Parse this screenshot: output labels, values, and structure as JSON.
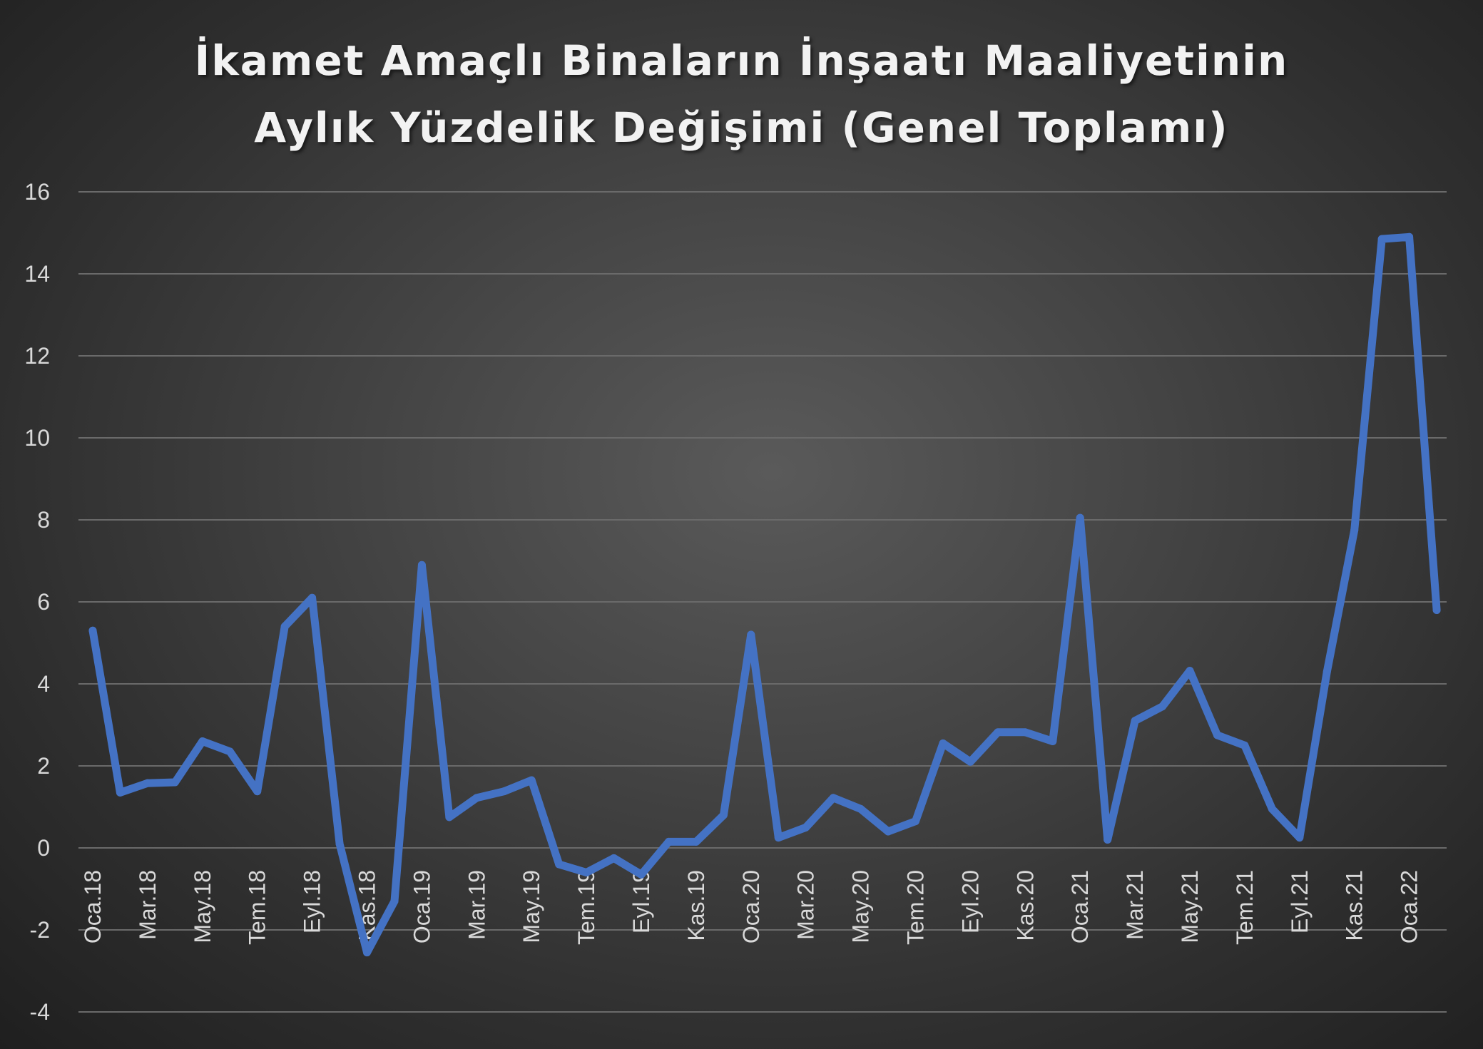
{
  "chart_data": {
    "type": "line",
    "title_lines": [
      "İkamet Amaçlı Binaların İnşaatı Maaliyetinin",
      "Aylık Yüzdelik Değişimi (Genel Toplamı)"
    ],
    "xlabel": "",
    "ylabel": "",
    "ylim": [
      -4,
      16
    ],
    "yticks": [
      16,
      14,
      12,
      10,
      8,
      6,
      4,
      2,
      0,
      -2,
      -4
    ],
    "grid": true,
    "x": [
      "Oca.18",
      "Şub.18",
      "Mar.18",
      "Nis.18",
      "May.18",
      "Haz.18",
      "Tem.18",
      "Ağu.18",
      "Eyl.18",
      "Eki.18",
      "Kas.18",
      "Ara.18",
      "Oca.19",
      "Şub.19",
      "Mar.19",
      "Nis.19",
      "May.19",
      "Haz.19",
      "Tem.19",
      "Ağu.19",
      "Eyl.19",
      "Eki.19",
      "Kas.19",
      "Ara.19",
      "Oca.20",
      "Şub.20",
      "Mar.20",
      "Nis.20",
      "May.20",
      "Haz.20",
      "Tem.20",
      "Ağu.20",
      "Eyl.20",
      "Eki.20",
      "Kas.20",
      "Ara.20",
      "Oca.21",
      "Şub.21",
      "Mar.21",
      "Nis.21",
      "May.21",
      "Haz.21",
      "Tem.21",
      "Ağu.21",
      "Eyl.21",
      "Eki.21",
      "Kas.21",
      "Ara.21",
      "Oca.22",
      "Şub.22"
    ],
    "x_tick_labels": [
      "Oca.18",
      "Mar.18",
      "May.18",
      "Tem.18",
      "Eyl.18",
      "Kas.18",
      "Oca.19",
      "Mar.19",
      "May.19",
      "Tem.19",
      "Eyl.19",
      "Kas.19",
      "Oca.20",
      "Mar.20",
      "May.20",
      "Tem.20",
      "Eyl.20",
      "Kas.20",
      "Oca.21",
      "Mar.21",
      "May.21",
      "Tem.21",
      "Eyl.21",
      "Kas.21",
      "Oca.22"
    ],
    "series": [
      {
        "color": "#4472c4",
        "values": [
          5.3,
          1.35,
          1.58,
          1.6,
          2.6,
          2.35,
          1.38,
          5.4,
          6.1,
          0.1,
          -2.55,
          -1.3,
          6.9,
          0.75,
          1.22,
          1.38,
          1.65,
          -0.4,
          -0.6,
          -0.25,
          -0.65,
          0.15,
          0.15,
          0.8,
          5.2,
          0.25,
          0.5,
          1.22,
          0.95,
          0.4,
          0.65,
          2.55,
          2.1,
          2.82,
          2.82,
          2.6,
          8.05,
          0.2,
          3.1,
          3.45,
          4.32,
          2.75,
          2.5,
          0.95,
          0.25,
          4.3,
          7.75,
          14.85,
          14.9,
          5.8
        ]
      }
    ]
  },
  "colors": {
    "line": "#4472c4",
    "grid": "#6a6a6a",
    "text": "#d9d9d9",
    "title": "#f2f2f2"
  }
}
